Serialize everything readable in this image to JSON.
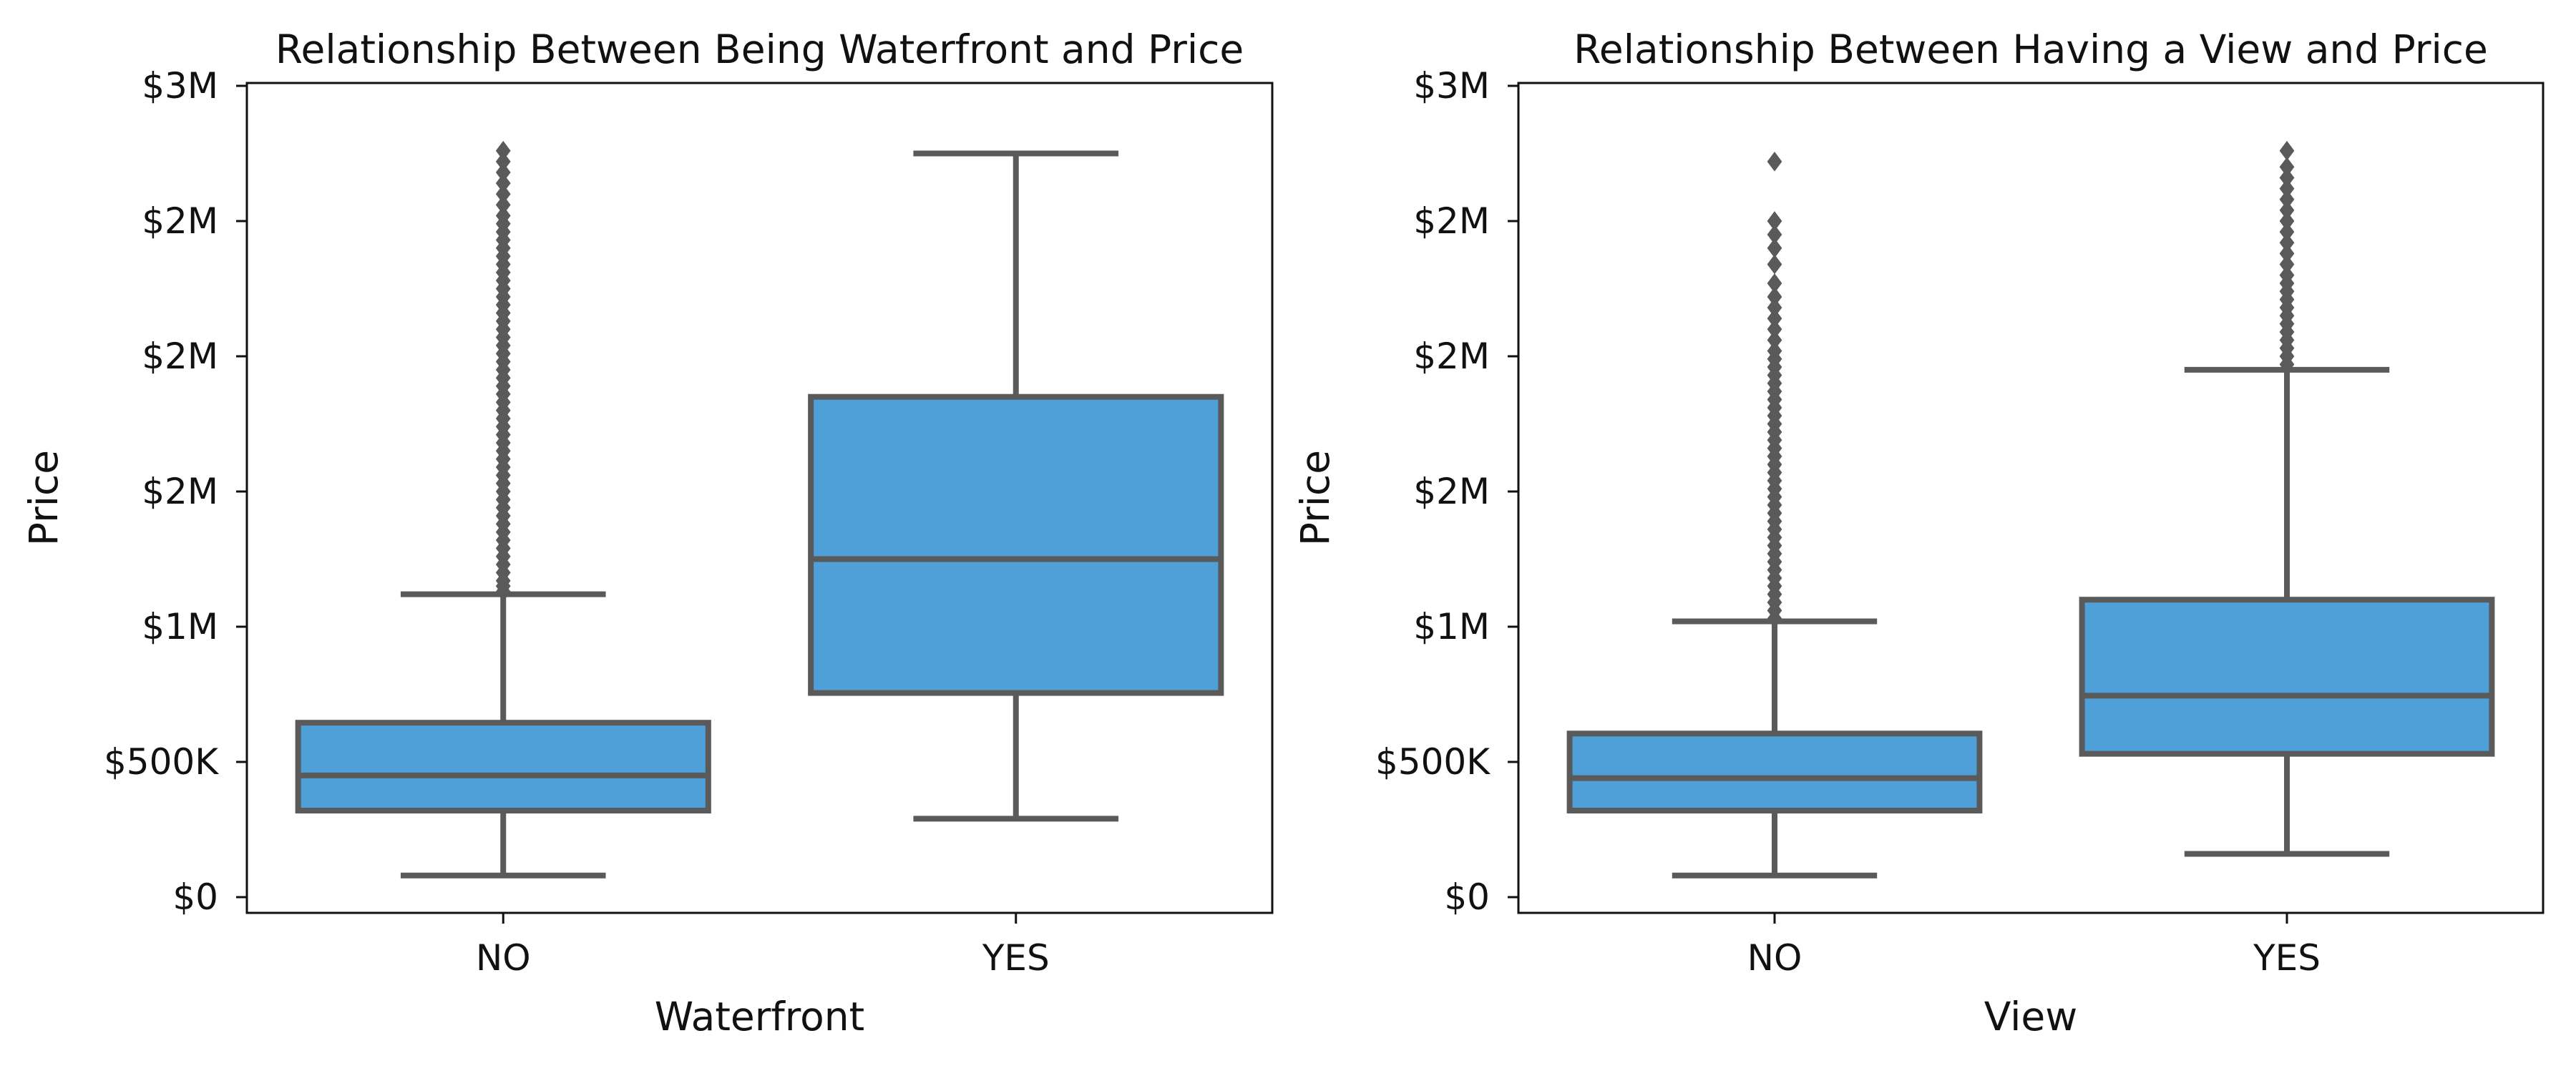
{
  "chart_data": [
    {
      "type": "box",
      "title": "Relationship Between Being Waterfront and Price",
      "xlabel": "Waterfront",
      "ylabel": "Price",
      "categories": [
        "NO",
        "YES"
      ],
      "ylim": [
        0,
        3000000
      ],
      "yticks": [
        {
          "value": 0,
          "label": "$0"
        },
        {
          "value": 500000,
          "label": "$500K"
        },
        {
          "value": 1000000,
          "label": "$1M"
        },
        {
          "value": 1500000,
          "label": "$2M"
        },
        {
          "value": 2000000,
          "label": "$2M"
        },
        {
          "value": 2500000,
          "label": "$2M"
        },
        {
          "value": 3000000,
          "label": "$3M"
        }
      ],
      "boxes": [
        {
          "category": "NO",
          "whisker_low": 80000,
          "q1": 320000,
          "median": 450000,
          "q3": 645000,
          "whisker_high": 1120000,
          "outliers": [
            1130000,
            1150000,
            1170000,
            1200000,
            1230000,
            1260000,
            1290000,
            1320000,
            1350000,
            1380000,
            1410000,
            1440000,
            1470000,
            1500000,
            1530000,
            1560000,
            1590000,
            1620000,
            1650000,
            1680000,
            1710000,
            1740000,
            1770000,
            1800000,
            1830000,
            1860000,
            1890000,
            1920000,
            1950000,
            1980000,
            2010000,
            2040000,
            2070000,
            2100000,
            2130000,
            2160000,
            2190000,
            2220000,
            2250000,
            2280000,
            2310000,
            2340000,
            2370000,
            2400000,
            2430000,
            2460000,
            2490000,
            2520000,
            2560000,
            2600000,
            2640000,
            2680000,
            2720000,
            2760000
          ]
        },
        {
          "category": "YES",
          "whisker_low": 290000,
          "q1": 755000,
          "median": 1250000,
          "q3": 1850000,
          "whisker_high": 2750000,
          "outliers": []
        }
      ],
      "box_color": "#4f9fd8",
      "line_color": "#5a5a5a",
      "grid": false
    },
    {
      "type": "box",
      "title": "Relationship Between Having a View and Price",
      "xlabel": "View",
      "ylabel": "Price",
      "categories": [
        "NO",
        "YES"
      ],
      "ylim": [
        0,
        3000000
      ],
      "yticks": [
        {
          "value": 0,
          "label": "$0"
        },
        {
          "value": 500000,
          "label": "$500K"
        },
        {
          "value": 1000000,
          "label": "$1M"
        },
        {
          "value": 1500000,
          "label": "$2M"
        },
        {
          "value": 2000000,
          "label": "$2M"
        },
        {
          "value": 2500000,
          "label": "$2M"
        },
        {
          "value": 3000000,
          "label": "$3M"
        }
      ],
      "boxes": [
        {
          "category": "NO",
          "whisker_low": 80000,
          "q1": 320000,
          "median": 440000,
          "q3": 605000,
          "whisker_high": 1020000,
          "outliers": [
            1030000,
            1060000,
            1090000,
            1120000,
            1150000,
            1180000,
            1210000,
            1240000,
            1270000,
            1300000,
            1330000,
            1360000,
            1390000,
            1420000,
            1450000,
            1480000,
            1510000,
            1540000,
            1570000,
            1600000,
            1630000,
            1660000,
            1690000,
            1720000,
            1750000,
            1780000,
            1810000,
            1840000,
            1870000,
            1900000,
            1930000,
            1960000,
            1990000,
            2020000,
            2060000,
            2100000,
            2140000,
            2180000,
            2220000,
            2270000,
            2340000,
            2400000,
            2450000,
            2500000,
            2720000
          ]
        },
        {
          "category": "YES",
          "whisker_low": 160000,
          "q1": 530000,
          "median": 745000,
          "q3": 1100000,
          "whisker_high": 1950000,
          "outliers": [
            1970000,
            2000000,
            2030000,
            2060000,
            2090000,
            2120000,
            2150000,
            2180000,
            2210000,
            2240000,
            2270000,
            2300000,
            2340000,
            2380000,
            2420000,
            2460000,
            2500000,
            2540000,
            2580000,
            2620000,
            2660000,
            2700000,
            2760000
          ]
        }
      ],
      "box_color": "#4f9fd8",
      "line_color": "#5a5a5a",
      "grid": false
    }
  ]
}
